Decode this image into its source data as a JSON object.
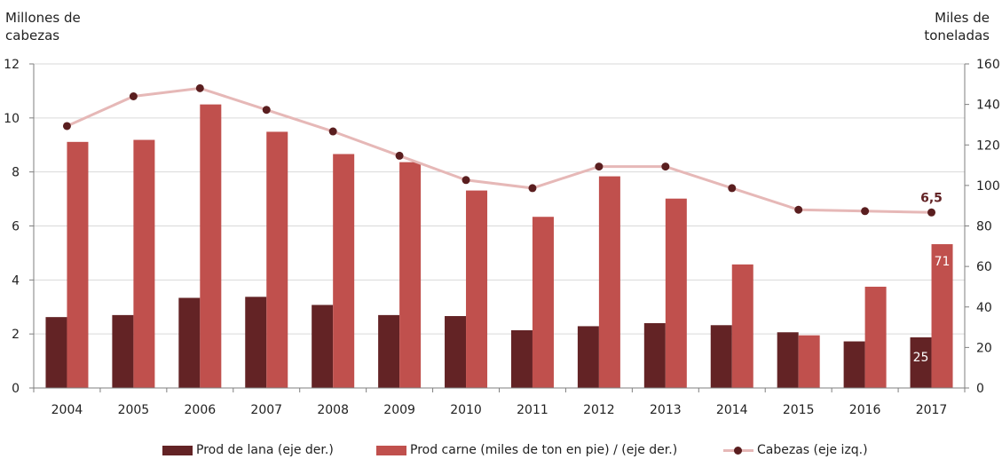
{
  "left_axis_title": "Millones de\ncabezas",
  "right_axis_title": "Miles de\ntoneladas",
  "colors": {
    "lana": "#632325",
    "carne": "#c0504d",
    "cabezas_line": "#e6b8b7",
    "cabezas_marker": "#5a1e1f",
    "grid": "#d9d9d9",
    "axis": "#7f7f7f",
    "annotation": "#632325",
    "label_on_bar": "#ffffff"
  },
  "chart_data": {
    "type": "bar",
    "categories": [
      "2004",
      "2005",
      "2006",
      "2007",
      "2008",
      "2009",
      "2010",
      "2011",
      "2012",
      "2013",
      "2014",
      "2015",
      "2016",
      "2017"
    ],
    "left_axis": {
      "ylim": [
        0,
        12
      ],
      "ticks": [
        "0",
        "2",
        "4",
        "6",
        "8",
        "10",
        "12"
      ]
    },
    "right_axis": {
      "ylim": [
        0,
        160
      ],
      "ticks": [
        "0",
        "20",
        "40",
        "60",
        "80",
        "100",
        "120",
        "140",
        "160"
      ]
    },
    "grid": true,
    "legend_position": "bottom",
    "series": [
      {
        "name": "Prod de lana (eje der.)",
        "type": "bar",
        "axis": "right",
        "values": [
          35,
          36,
          44.5,
          45,
          41,
          36,
          35.5,
          28.5,
          30.5,
          32,
          31,
          27.5,
          23,
          25
        ]
      },
      {
        "name": "Prod carne (miles de ton en pie) / (eje der.)",
        "type": "bar",
        "axis": "right",
        "values": [
          121.5,
          122.5,
          140,
          126.5,
          115.5,
          111.5,
          97.5,
          84.5,
          104.5,
          93.5,
          61,
          26,
          50,
          71
        ]
      },
      {
        "name": "Cabezas (eje izq.)",
        "type": "line",
        "axis": "left",
        "values": [
          9.7,
          10.8,
          11.1,
          10.3,
          9.5,
          8.6,
          7.7,
          7.4,
          8.2,
          8.2,
          7.4,
          6.6,
          6.55,
          6.5
        ]
      }
    ],
    "annotations": [
      {
        "series": "Cabezas (eje izq.)",
        "category": "2017",
        "text": "6,5"
      },
      {
        "series": "Prod carne (miles de ton en pie) / (eje der.)",
        "category": "2017",
        "text": "71"
      },
      {
        "series": "Prod de lana (eje der.)",
        "category": "2017",
        "text": "25"
      }
    ]
  }
}
